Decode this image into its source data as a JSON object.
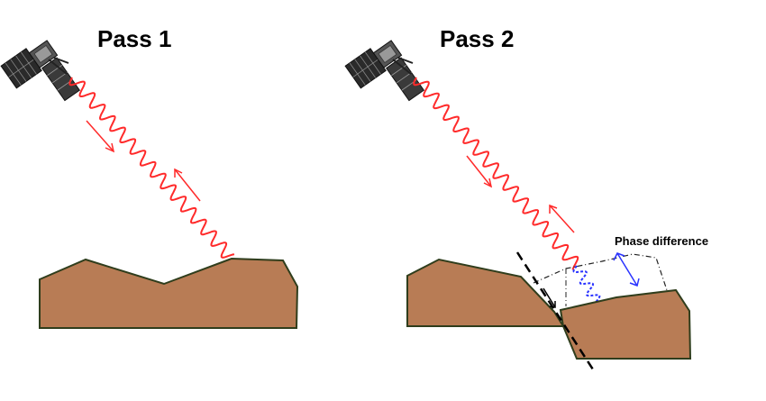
{
  "panels": [
    {
      "title": "Pass 1"
    },
    {
      "title": "Pass 2",
      "annotation": "Phase difference"
    }
  ],
  "colors": {
    "terrain_fill": "#b87c55",
    "terrain_stroke": "#2f3d1c",
    "radar_wave": "#ff2a2a",
    "phase_wave": "#2a33ff",
    "phase_arrow": "#2a33ff",
    "fault_line": "#000000"
  },
  "icons": [
    "satellite-icon",
    "satellite-icon"
  ]
}
